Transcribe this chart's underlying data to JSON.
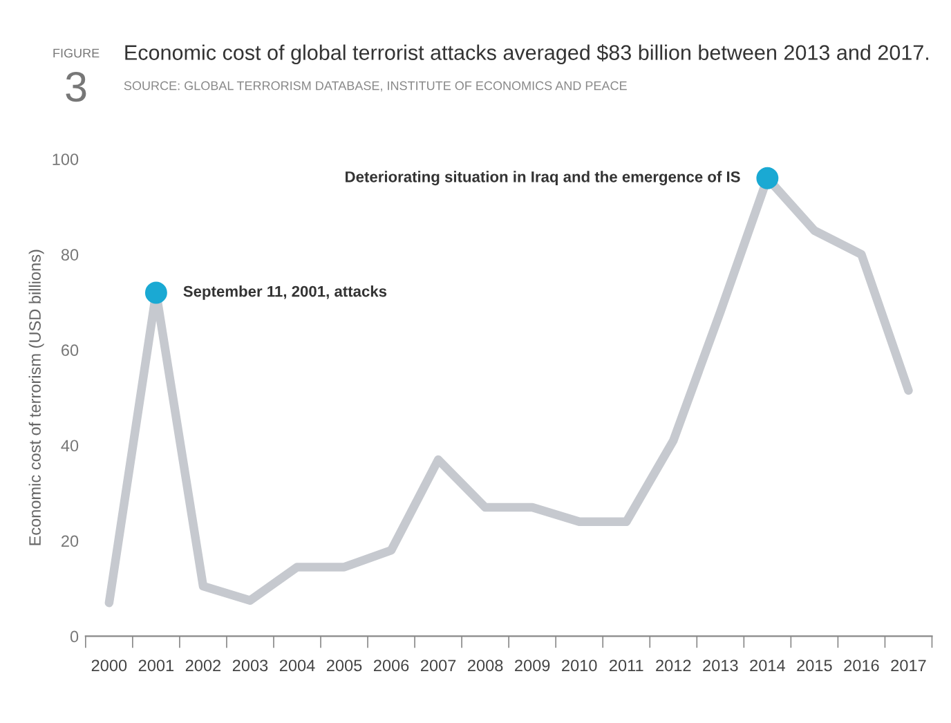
{
  "chart_data": {
    "type": "line",
    "title": "Economic cost of global terrorist attacks averaged $83 billion between 2013 and 2017.",
    "ylabel": "Economic cost of terrorism (USD billions)",
    "categories": [
      "2000",
      "2001",
      "2002",
      "2003",
      "2004",
      "2005",
      "2006",
      "2007",
      "2008",
      "2009",
      "2010",
      "2011",
      "2012",
      "2013",
      "2014",
      "2015",
      "2016",
      "2017"
    ],
    "series": [
      {
        "color": "#c6c9cf",
        "values": [
          7,
          72,
          10.5,
          7.5,
          14.5,
          14.5,
          18,
          37,
          27,
          27,
          24,
          24,
          41,
          68,
          96,
          85,
          80,
          51.5
        ]
      },
      {
        "type": "scatter",
        "marker": "circle",
        "color": "#1aa9d3",
        "values": [
          null,
          72,
          null,
          null,
          null,
          null,
          null,
          null,
          null,
          null,
          null,
          null,
          null,
          null,
          96,
          null,
          null,
          null
        ]
      }
    ],
    "ylim": [
      0,
      100
    ],
    "yticks": [
      0,
      20,
      40,
      60,
      80,
      100
    ],
    "grid": false,
    "marker": "none",
    "annotations": [
      "FIGURE",
      "3",
      "SOURCE: GLOBAL TERRORISM DATABASE, INSTITUTE OF ECONOMICS AND PEACE",
      {
        "text": "September 11, 2001, attacks",
        "x": "2001",
        "y": 72
      },
      {
        "text": "Deteriorating situation in Iraq and the emergence of IS",
        "x": "2014",
        "y": 96
      }
    ]
  }
}
